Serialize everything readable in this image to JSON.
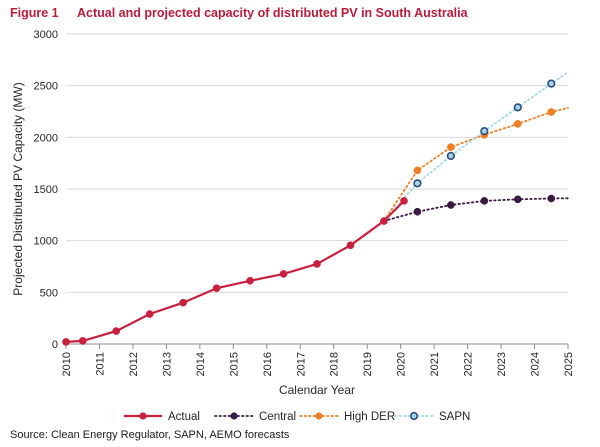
{
  "figure": {
    "number": "Figure 1",
    "title": "Actual and projected capacity of distributed PV in South Australia",
    "source": "Source: Clean Energy Regulator, SAPN, AEMO forecasts"
  },
  "colors": {
    "Actual": "#c8213f",
    "Central": "#3a1a42",
    "High DER": "#f07e23",
    "SAPN": "#a5d6e8",
    "SAPN_marker_border": "#2e4a7a",
    "grid": "#d9d9d9",
    "axis": "#8c8c8c"
  },
  "chart_data": {
    "type": "line",
    "title": "",
    "xlabel": "Calendar Year",
    "ylabel": "Projected Distributed PV Capacity (MW)",
    "xlim": [
      2010,
      2025
    ],
    "ylim": [
      0,
      3000
    ],
    "x_ticks": [
      "2010",
      "2011",
      "2012",
      "2013",
      "2014",
      "2015",
      "2016",
      "2017",
      "2018",
      "2019",
      "2020",
      "2021",
      "2022",
      "2023",
      "2024",
      "2025"
    ],
    "y_ticks": [
      "0",
      "500",
      "1000",
      "1500",
      "2000",
      "2500",
      "3000"
    ],
    "grid": "horizontal",
    "legend_position": "bottom",
    "series": [
      {
        "name": "Actual",
        "style": "solid",
        "marker": "filled-circle",
        "x": [
          2010,
          2010.5,
          2011.5,
          2012.5,
          2013.5,
          2014.5,
          2015.5,
          2016.5,
          2017.5,
          2018.5,
          2019.5,
          2020.1
        ],
        "y": [
          20,
          30,
          125,
          290,
          400,
          540,
          612,
          678,
          775,
          955,
          1190,
          1385
        ]
      },
      {
        "name": "Central",
        "style": "dotted",
        "marker": "filled-circle",
        "x": [
          2019.5,
          2020.5,
          2021.5,
          2022.5,
          2023.5,
          2024.5,
          2025
        ],
        "y": [
          1190,
          1280,
          1345,
          1385,
          1400,
          1408,
          1410
        ],
        "marker_x": [
          2020.5,
          2021.5,
          2022.5,
          2023.5,
          2024.5
        ]
      },
      {
        "name": "High DER",
        "style": "dotted",
        "marker": "filled-circle",
        "x": [
          2019.5,
          2020.5,
          2021.5,
          2022.5,
          2023.5,
          2024.5,
          2025
        ],
        "y": [
          1190,
          1680,
          1905,
          2025,
          2130,
          2245,
          2285
        ],
        "marker_x": [
          2020.5,
          2021.5,
          2022.5,
          2023.5,
          2024.5
        ]
      },
      {
        "name": "SAPN",
        "style": "dotted",
        "marker": "hollow-circle",
        "x": [
          2019.5,
          2020.5,
          2021.5,
          2022.5,
          2023.5,
          2024.5,
          2025
        ],
        "y": [
          1190,
          1555,
          1820,
          2060,
          2290,
          2520,
          2630
        ],
        "marker_x": [
          2020.5,
          2021.5,
          2022.5,
          2023.5,
          2024.5
        ]
      }
    ]
  }
}
